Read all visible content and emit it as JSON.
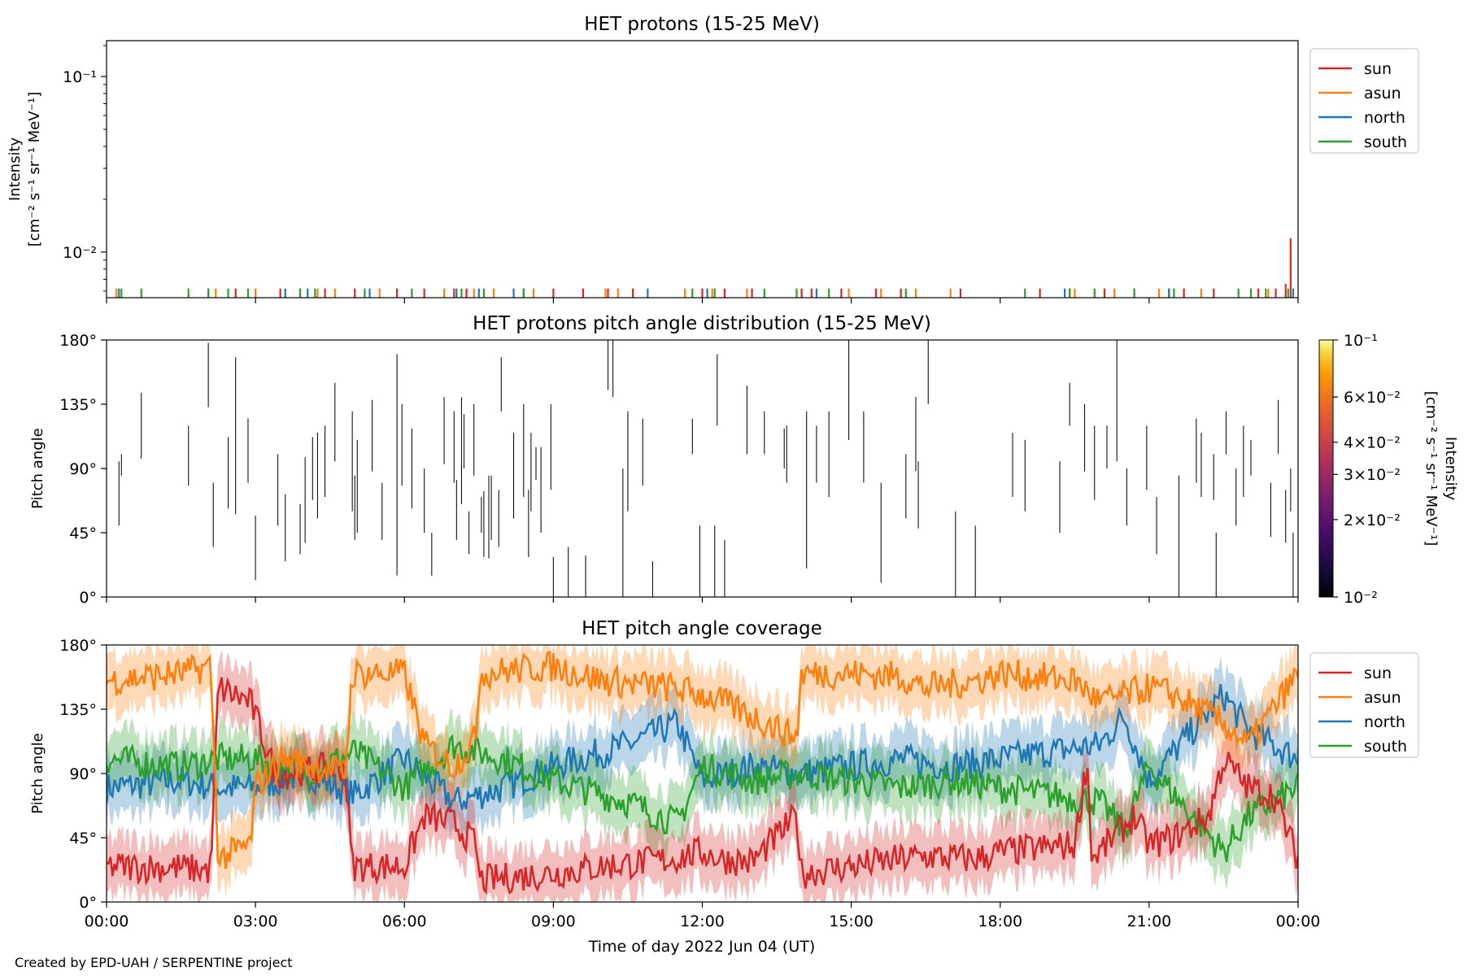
{
  "credit": "Created by EPD-UAH / SERPENTINE project",
  "chart_data": [
    {
      "type": "line",
      "title": "HET protons (15-25 MeV)",
      "ylabel": [
        "Intensity",
        "[cm⁻² s⁻¹ sr⁻¹ MeV⁻¹]"
      ],
      "yscale": "log",
      "ylim": [
        0.0055,
        0.16
      ],
      "yticks": [
        {
          "value": 0.1,
          "label": "10⁻¹"
        },
        {
          "value": 0.01,
          "label": "10⁻²"
        }
      ],
      "xlim_hours": [
        0,
        24
      ],
      "legend": {
        "placement": "outside-right-top",
        "entries": [
          "sun",
          "asun",
          "north",
          "south"
        ]
      },
      "colors": {
        "sun": "#d62728",
        "asun": "#ff7f0e",
        "north": "#1f77b4",
        "south": "#2ca02c"
      },
      "series": [
        {
          "name": "sun",
          "x": [
            2.05,
            2.6,
            3.5,
            3.9,
            4.4,
            5.0,
            5.85,
            6.4,
            7.0,
            7.25,
            8.4,
            9.0,
            9.6,
            10.1,
            10.6,
            12.0,
            12.45,
            13.0,
            14.0,
            14.2,
            14.8,
            15.5,
            16.0,
            17.2,
            18.8,
            19.4,
            20.1,
            20.7,
            21.4,
            21.7,
            22.3,
            23.2,
            23.55,
            23.75,
            23.85
          ],
          "y": [
            0.0062,
            0.0062,
            0.0062,
            0.0062,
            0.0062,
            0.0062,
            0.0062,
            0.0062,
            0.0062,
            0.0062,
            0.0062,
            0.0062,
            0.0062,
            0.0062,
            0.0062,
            0.0062,
            0.0062,
            0.0062,
            0.0062,
            0.0062,
            0.0062,
            0.0062,
            0.0062,
            0.0062,
            0.0062,
            0.0062,
            0.0062,
            0.0062,
            0.0062,
            0.0062,
            0.0062,
            0.0062,
            0.0062,
            0.0066,
            0.012
          ]
        },
        {
          "name": "asun",
          "x": [
            0.2,
            2.2,
            3.0,
            4.25,
            4.6,
            5.5,
            6.8,
            7.4,
            7.8,
            8.6,
            10.05,
            10.3,
            11.65,
            12.2,
            12.9,
            14.95,
            15.6,
            16.3,
            17.0,
            19.5,
            20.3,
            21.2,
            22.05,
            23.4
          ],
          "y": [
            0.0062,
            0.0062,
            0.0062,
            0.0062,
            0.0062,
            0.0062,
            0.0062,
            0.0062,
            0.0062,
            0.0062,
            0.0062,
            0.0062,
            0.0062,
            0.0062,
            0.0062,
            0.0062,
            0.0062,
            0.0062,
            0.0062,
            0.0062,
            0.0062,
            0.0062,
            0.0062,
            0.0062
          ]
        },
        {
          "name": "north",
          "x": [
            0.25,
            3.6,
            4.05,
            5.3,
            7.05,
            7.5,
            8.2,
            10.9,
            12.1,
            14.3,
            19.3,
            21.4,
            23.9
          ],
          "y": [
            0.0062,
            0.0062,
            0.0062,
            0.0062,
            0.0062,
            0.0062,
            0.0062,
            0.0062,
            0.0062,
            0.0062,
            0.0062,
            0.0062,
            0.0062
          ]
        },
        {
          "name": "south",
          "x": [
            0.3,
            0.7,
            1.65,
            2.05,
            2.45,
            2.85,
            3.9,
            4.2,
            5.2,
            6.15,
            7.15,
            7.6,
            8.4,
            11.8,
            12.25,
            13.25,
            13.9,
            14.55,
            16.1,
            18.5,
            19.4,
            19.9,
            20.7,
            21.5,
            22.8,
            23.05,
            23.35,
            23.8
          ],
          "y": [
            0.0062,
            0.0062,
            0.0062,
            0.0062,
            0.0062,
            0.0062,
            0.0062,
            0.0062,
            0.0062,
            0.0062,
            0.0062,
            0.0062,
            0.0062,
            0.0062,
            0.0062,
            0.0062,
            0.0062,
            0.0062,
            0.0062,
            0.0062,
            0.0062,
            0.0062,
            0.0062,
            0.0062,
            0.0062,
            0.0062,
            0.0062,
            0.0062
          ]
        }
      ]
    },
    {
      "type": "heatmap",
      "title": "HET protons pitch angle distribution (15-25 MeV)",
      "ylabel": "Pitch angle",
      "ylim": [
        0,
        180
      ],
      "yticks": [
        "0°",
        "45°",
        "90°",
        "135°",
        "180°"
      ],
      "xlim_hours": [
        0,
        24
      ],
      "colorbar": {
        "label": [
          "Intensity",
          "[cm⁻² s⁻¹ sr⁻¹ MeV⁻¹]"
        ],
        "scale": "log",
        "range": [
          0.01,
          0.1
        ],
        "ticks": [
          {
            "value": 0.1,
            "label": "10⁻¹"
          },
          {
            "value": 0.06,
            "label": "6×10⁻²"
          },
          {
            "value": 0.04,
            "label": "4×10⁻²"
          },
          {
            "value": 0.03,
            "label": "3×10⁻²"
          },
          {
            "value": 0.02,
            "label": "2×10⁻²"
          },
          {
            "value": 0.01,
            "label": "10⁻²"
          }
        ]
      },
      "segments": [
        [
          0.25,
          50,
          95
        ],
        [
          0.3,
          85,
          100
        ],
        [
          0.7,
          97,
          143
        ],
        [
          1.65,
          78,
          120
        ],
        [
          2.05,
          133,
          178
        ],
        [
          2.15,
          35,
          80
        ],
        [
          2.45,
          62,
          112
        ],
        [
          2.6,
          58,
          168
        ],
        [
          2.85,
          80,
          125
        ],
        [
          3.0,
          12,
          57
        ],
        [
          3.45,
          50,
          100
        ],
        [
          3.6,
          25,
          72
        ],
        [
          3.9,
          30,
          65
        ],
        [
          4.0,
          38,
          98
        ],
        [
          4.15,
          68,
          112
        ],
        [
          4.25,
          55,
          115
        ],
        [
          4.4,
          70,
          120
        ],
        [
          4.6,
          95,
          150
        ],
        [
          4.95,
          60,
          130
        ],
        [
          5.0,
          40,
          85
        ],
        [
          5.05,
          45,
          110
        ],
        [
          5.35,
          88,
          138
        ],
        [
          5.55,
          40,
          80
        ],
        [
          5.85,
          15,
          170
        ],
        [
          5.95,
          78,
          135
        ],
        [
          6.15,
          62,
          118
        ],
        [
          6.4,
          45,
          90
        ],
        [
          6.55,
          15,
          45
        ],
        [
          6.8,
          93,
          140
        ],
        [
          7.0,
          80,
          130
        ],
        [
          7.05,
          40,
          82
        ],
        [
          7.15,
          65,
          140
        ],
        [
          7.2,
          90,
          128
        ],
        [
          7.3,
          30,
          60
        ],
        [
          7.4,
          85,
          135
        ],
        [
          7.55,
          45,
          70
        ],
        [
          7.6,
          28,
          74
        ],
        [
          7.7,
          27,
          85
        ],
        [
          7.75,
          40,
          85
        ],
        [
          7.9,
          35,
          75
        ],
        [
          7.95,
          130,
          168
        ],
        [
          8.2,
          55,
          115
        ],
        [
          8.4,
          70,
          135
        ],
        [
          8.5,
          28,
          75
        ],
        [
          8.55,
          60,
          115
        ],
        [
          8.65,
          82,
          105
        ],
        [
          8.75,
          45,
          105
        ],
        [
          8.95,
          75,
          135
        ],
        [
          9.0,
          0,
          28
        ],
        [
          9.3,
          0,
          35
        ],
        [
          9.65,
          0,
          29
        ],
        [
          10.1,
          145,
          180
        ],
        [
          10.2,
          140,
          180
        ],
        [
          10.4,
          0,
          90
        ],
        [
          10.5,
          60,
          130
        ],
        [
          10.8,
          78,
          125
        ],
        [
          11.0,
          0,
          25
        ],
        [
          11.8,
          100,
          125
        ],
        [
          11.95,
          0,
          50
        ],
        [
          12.25,
          0,
          50
        ],
        [
          12.3,
          120,
          170
        ],
        [
          12.45,
          0,
          40
        ],
        [
          12.9,
          100,
          148
        ],
        [
          13.25,
          100,
          130
        ],
        [
          13.65,
          90,
          118
        ],
        [
          13.7,
          80,
          120
        ],
        [
          14.1,
          20,
          130
        ],
        [
          14.3,
          80,
          120
        ],
        [
          14.55,
          70,
          130
        ],
        [
          14.95,
          110,
          180
        ],
        [
          15.25,
          80,
          130
        ],
        [
          15.6,
          10,
          80
        ],
        [
          16.1,
          55,
          100
        ],
        [
          16.3,
          88,
          140
        ],
        [
          16.35,
          48,
          95
        ],
        [
          16.55,
          135,
          180
        ],
        [
          17.1,
          0,
          60
        ],
        [
          17.5,
          0,
          50
        ],
        [
          18.25,
          70,
          115
        ],
        [
          18.5,
          60,
          110
        ],
        [
          19.2,
          45,
          95
        ],
        [
          19.4,
          120,
          150
        ],
        [
          19.7,
          88,
          135
        ],
        [
          19.9,
          68,
          120
        ],
        [
          20.15,
          90,
          120
        ],
        [
          20.35,
          95,
          180
        ],
        [
          20.55,
          50,
          90
        ],
        [
          20.95,
          75,
          120
        ],
        [
          21.15,
          30,
          70
        ],
        [
          21.6,
          0,
          85
        ],
        [
          21.95,
          80,
          125
        ],
        [
          22.05,
          70,
          115
        ],
        [
          22.3,
          68,
          100
        ],
        [
          22.35,
          0,
          45
        ],
        [
          22.55,
          100,
          130
        ],
        [
          22.75,
          50,
          90
        ],
        [
          22.9,
          70,
          120
        ],
        [
          23.05,
          85,
          110
        ],
        [
          23.45,
          42,
          80
        ],
        [
          23.6,
          100,
          138
        ],
        [
          23.75,
          38,
          75
        ],
        [
          23.85,
          60,
          90
        ],
        [
          23.9,
          0,
          45
        ]
      ]
    },
    {
      "type": "area",
      "title": "HET pitch angle coverage",
      "ylabel": "Pitch angle",
      "xlabel": "Time of day 2022 Jun 04 (UT)",
      "ylim": [
        0,
        180
      ],
      "yticks": [
        "0°",
        "45°",
        "90°",
        "135°",
        "180°"
      ],
      "xticks": [
        "00:00",
        "03:00",
        "06:00",
        "09:00",
        "12:00",
        "15:00",
        "18:00",
        "21:00",
        "00:00"
      ],
      "xlim_hours": [
        0,
        24
      ],
      "band_halfwidth_deg": 20,
      "legend": {
        "placement": "outside-right-top",
        "entries": [
          "sun",
          "asun",
          "north",
          "south"
        ]
      },
      "series": [
        {
          "name": "sun",
          "x": [
            0,
            1.5,
            2.1,
            2.25,
            2.9,
            3.0,
            3.4,
            4.8,
            4.95,
            6.0,
            6.4,
            7.0,
            7.45,
            7.5,
            9.0,
            10.0,
            11.4,
            12.0,
            12.4,
            13.0,
            13.9,
            14.0,
            15.0,
            16.0,
            16.5,
            17.5,
            18.0,
            19.5,
            19.75,
            19.85,
            20.0,
            20.7,
            21.0,
            21.5,
            22.2,
            22.5,
            23.0,
            23.5,
            24.0
          ],
          "y": [
            25,
            24,
            22,
            150,
            140,
            130,
            90,
            95,
            25,
            25,
            60,
            55,
            40,
            15,
            20,
            25,
            30,
            35,
            30,
            28,
            60,
            20,
            25,
            30,
            32,
            30,
            35,
            40,
            100,
            30,
            35,
            60,
            40,
            45,
            60,
            100,
            80,
            75,
            30
          ]
        },
        {
          "name": "asun",
          "x": [
            0,
            1.5,
            2.1,
            2.25,
            2.9,
            3.0,
            3.5,
            4.8,
            4.95,
            6.0,
            6.4,
            7.0,
            7.45,
            7.5,
            9.0,
            10.0,
            11.4,
            12.0,
            12.4,
            13.0,
            13.9,
            14.0,
            15.0,
            16.0,
            16.5,
            17.5,
            18.0,
            19.5,
            20.0,
            21.0,
            21.5,
            22.5,
            23.0,
            23.5,
            24.0
          ],
          "y": [
            155,
            160,
            165,
            30,
            40,
            80,
            100,
            90,
            160,
            160,
            110,
            95,
            115,
            160,
            165,
            155,
            150,
            145,
            140,
            130,
            115,
            160,
            160,
            158,
            150,
            155,
            160,
            155,
            140,
            150,
            145,
            125,
            110,
            135,
            160
          ]
        },
        {
          "name": "north",
          "x": [
            0,
            1.5,
            2.25,
            3.0,
            4.0,
            5.0,
            6.0,
            7.0,
            8.0,
            9.0,
            10.5,
            11.5,
            12.0,
            13.0,
            14.0,
            15.0,
            16.0,
            17.0,
            18.0,
            19.0,
            20.0,
            20.5,
            21.0,
            22.0,
            22.5,
            23.0,
            24.0
          ],
          "y": [
            80,
            85,
            80,
            80,
            90,
            75,
            100,
            70,
            80,
            95,
            110,
            125,
            85,
            95,
            90,
            95,
            100,
            95,
            100,
            105,
            110,
            130,
            85,
            125,
            145,
            120,
            100
          ]
        },
        {
          "name": "south",
          "x": [
            0,
            1.5,
            2.25,
            3.0,
            4.0,
            5.0,
            6.0,
            7.0,
            8.0,
            9.0,
            10.5,
            11.5,
            12.0,
            13.0,
            14.0,
            15.0,
            16.0,
            17.0,
            18.0,
            19.0,
            20.0,
            20.5,
            21.0,
            22.0,
            22.5,
            23.0,
            24.0
          ],
          "y": [
            100,
            95,
            100,
            100,
            90,
            105,
            80,
            110,
            100,
            85,
            70,
            55,
            95,
            85,
            90,
            85,
            80,
            85,
            80,
            75,
            70,
            50,
            95,
            55,
            35,
            60,
            80
          ]
        }
      ]
    }
  ]
}
